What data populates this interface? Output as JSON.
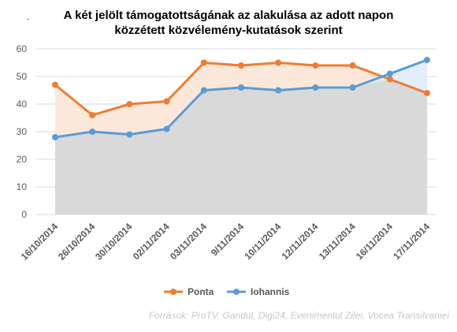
{
  "chart_data": {
    "type": "line",
    "title_lines": [
      "A két jelölt támogatottságának az alakulása az adott napon",
      "közzétett  közvélemény-kutatások szerint"
    ],
    "categories": [
      "16/10/2014",
      "26/10/2014",
      "30/10/2014",
      "02/11/2014",
      "03/11/2014",
      "9/11/2014",
      "10/11/2014",
      "12/11/2014",
      "13/11/2014",
      "16/11/2014",
      "17/11/2014"
    ],
    "series": [
      {
        "name": "Ponta",
        "color": "#ED7D31",
        "fill": "#FBE5D6",
        "values": [
          47,
          36,
          40,
          41,
          55,
          54,
          55,
          54,
          54,
          49,
          44
        ]
      },
      {
        "name": "Iohannis",
        "color": "#5B9BD5",
        "fill": "#DEEBF7",
        "values": [
          28,
          30,
          29,
          31,
          45,
          46,
          45,
          46,
          46,
          51,
          56
        ]
      }
    ],
    "overlap_fill": "#D9D9D9",
    "ylim": [
      0,
      60
    ],
    "yticks": [
      0,
      10,
      20,
      30,
      40,
      50,
      60
    ],
    "grid": true,
    "legend_position": "bottom",
    "source": "Források: ProTV, Gandul, Digi24, Evenimentul Zilei, Vocea Transilvaniei"
  }
}
